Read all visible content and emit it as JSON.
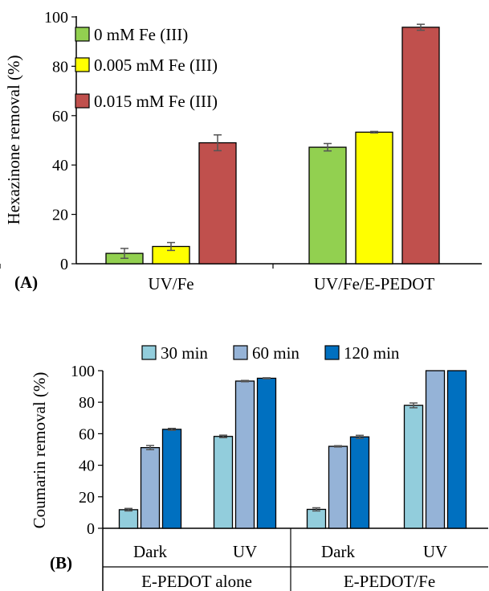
{
  "chart_data": [
    {
      "type": "bar",
      "panel_label": "(A)",
      "ylabel": "Hexazinone removal (%)",
      "xlabel": "",
      "ylim": [
        0,
        100
      ],
      "yticks": [
        "0",
        "20",
        "40",
        "60",
        "80",
        "100"
      ],
      "categories": [
        "UV/Fe",
        "UV/Fe/E-PEDOT"
      ],
      "legend_position": "top-left",
      "series": [
        {
          "name": "0 mM Fe (III)",
          "color": "#92d050",
          "values": [
            4.2,
            47.2
          ],
          "errors": [
            2.0,
            1.5
          ]
        },
        {
          "name": "0.005 mM Fe (III)",
          "color": "#ffff00",
          "values": [
            7.0,
            53.3
          ],
          "errors": [
            1.6,
            0.3
          ]
        },
        {
          "name": "0.015 mM Fe (III)",
          "color": "#c0504d",
          "values": [
            49.0,
            95.8
          ],
          "errors": [
            3.2,
            1.2
          ]
        }
      ]
    },
    {
      "type": "bar",
      "panel_label": "(B)",
      "ylabel": "Coumarin removal (%)",
      "xlabel": "",
      "ylim": [
        0,
        100
      ],
      "yticks": [
        "0",
        "20",
        "40",
        "60",
        "80",
        "100"
      ],
      "categories": [
        "Dark",
        "UV",
        "Dark",
        "UV"
      ],
      "groups": [
        "E-PEDOT alone",
        "E-PEDOT/Fe"
      ],
      "legend_position": "top",
      "series": [
        {
          "name": "30 min",
          "color": "#92cddc",
          "values": [
            11.8,
            58.3,
            12.0,
            78.0
          ],
          "errors": [
            0.8,
            0.8,
            1.0,
            1.5
          ]
        },
        {
          "name": "60 min",
          "color": "#95b3d7",
          "values": [
            51.2,
            93.4,
            52.0,
            100.0
          ],
          "errors": [
            1.3,
            0.4,
            0.4,
            0.0
          ]
        },
        {
          "name": "120 min",
          "color": "#0070c0",
          "values": [
            62.8,
            95.2,
            58.0,
            100.0
          ],
          "errors": [
            0.6,
            0.3,
            1.0,
            0.0
          ]
        }
      ]
    }
  ]
}
